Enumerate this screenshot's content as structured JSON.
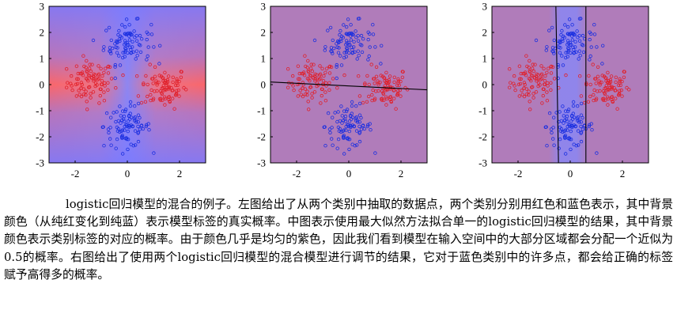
{
  "caption": "logistic回归模型的混合的例子。左图给出了从两个类别中抽取的数据点，两个类别分别用红色和蓝色表示，其中背景颜色（从纯红变化到纯蓝）表示模型标签的真实概率。中图表示使用最大似然方法拟合单一的logistic回归模型的结果，其中背景颜色表示类别标签的对应的概率。由于颜色几乎是均匀的紫色，因此我们看到模型在输入空间中的大部分区域都会分配一个近似为0.5的概率。右图给出了使用两个logistic回归模型的混合模型进行调节的结果，它对于蓝色类别中的许多点，都会给正确的标签赋予高得多的概率。",
  "colors": {
    "red_class": "#e0202a",
    "blue_class": "#1a2fe0",
    "purple_bg": "#b07cba",
    "boundary": "#000000"
  },
  "chart_data": [
    {
      "type": "scatter",
      "panel": "left",
      "background": "true-probability (pure red to pure blue)",
      "xlim": [
        -3,
        3
      ],
      "ylim": [
        -3,
        3
      ],
      "xticks": [
        "-2",
        "0",
        "2"
      ],
      "yticks": [
        "3",
        "2",
        "1",
        "0",
        "-1",
        "-2",
        "-3"
      ],
      "series": [
        {
          "color": "red",
          "clusters": [
            {
              "cx": -1.4,
              "cy": 0.1
            },
            {
              "cx": 1.4,
              "cy": -0.1
            }
          ],
          "points_per_cluster": 90
        },
        {
          "color": "blue",
          "clusters": [
            {
              "cx": 0.0,
              "cy": 1.6
            },
            {
              "cx": 0.0,
              "cy": -1.6
            }
          ],
          "points_per_cluster": 90
        }
      ]
    },
    {
      "type": "scatter",
      "panel": "middle",
      "background": "single logistic regression probability (near-uniform purple)",
      "xlim": [
        -3,
        3
      ],
      "ylim": [
        -3,
        3
      ],
      "xticks": [
        "-2",
        "0",
        "2"
      ],
      "yticks": [
        "3",
        "2",
        "1",
        "0",
        "-1",
        "-2",
        "-3"
      ],
      "boundaries": [
        {
          "from": [
            -3,
            0.1
          ],
          "to": [
            3,
            -0.2
          ]
        }
      ]
    },
    {
      "type": "scatter",
      "panel": "right",
      "background": "mixture of two logistic regression models",
      "xlim": [
        -3,
        3
      ],
      "ylim": [
        -3,
        3
      ],
      "xticks": [
        "-2",
        "0",
        "2"
      ],
      "yticks": [
        "3",
        "2",
        "1",
        "0",
        "-1",
        "-2",
        "-3"
      ],
      "boundaries": [
        {
          "from": [
            -0.55,
            3
          ],
          "to": [
            -0.45,
            -3
          ]
        },
        {
          "from": [
            0.6,
            3
          ],
          "to": [
            0.6,
            -3
          ]
        }
      ]
    }
  ]
}
